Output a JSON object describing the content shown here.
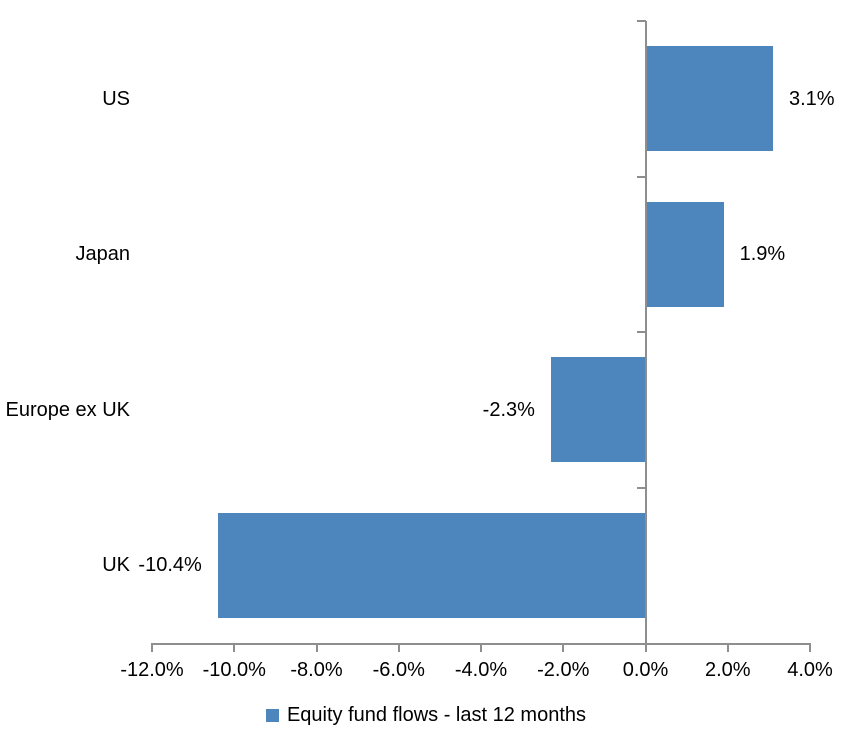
{
  "chart_data": {
    "type": "bar",
    "orientation": "horizontal",
    "title": "",
    "categories": [
      "US",
      "Japan",
      "Europe ex UK",
      "UK"
    ],
    "values": [
      3.1,
      1.9,
      -2.3,
      -10.4
    ],
    "value_labels": [
      "3.1%",
      "1.9%",
      "-2.3%",
      "-10.4%"
    ],
    "series_name": "Equity fund flows - last 12 months",
    "xlim": [
      -12,
      4
    ],
    "x_ticks": [
      -12,
      -10,
      -8,
      -6,
      -4,
      -2,
      0,
      2,
      4
    ],
    "x_tick_labels": [
      "-12.0%",
      "-10.0%",
      "-8.0%",
      "-6.0%",
      "-4.0%",
      "-2.0%",
      "0.0%",
      "2.0%",
      "4.0%"
    ],
    "grid": false,
    "legend_position": "bottom",
    "bar_color": "#4D86BD",
    "axis_color": "#8E8E8E",
    "text_color": "#000000",
    "background_color": "#FFFFFF"
  },
  "legend": {
    "label": "Equity fund flows - last 12 months"
  }
}
